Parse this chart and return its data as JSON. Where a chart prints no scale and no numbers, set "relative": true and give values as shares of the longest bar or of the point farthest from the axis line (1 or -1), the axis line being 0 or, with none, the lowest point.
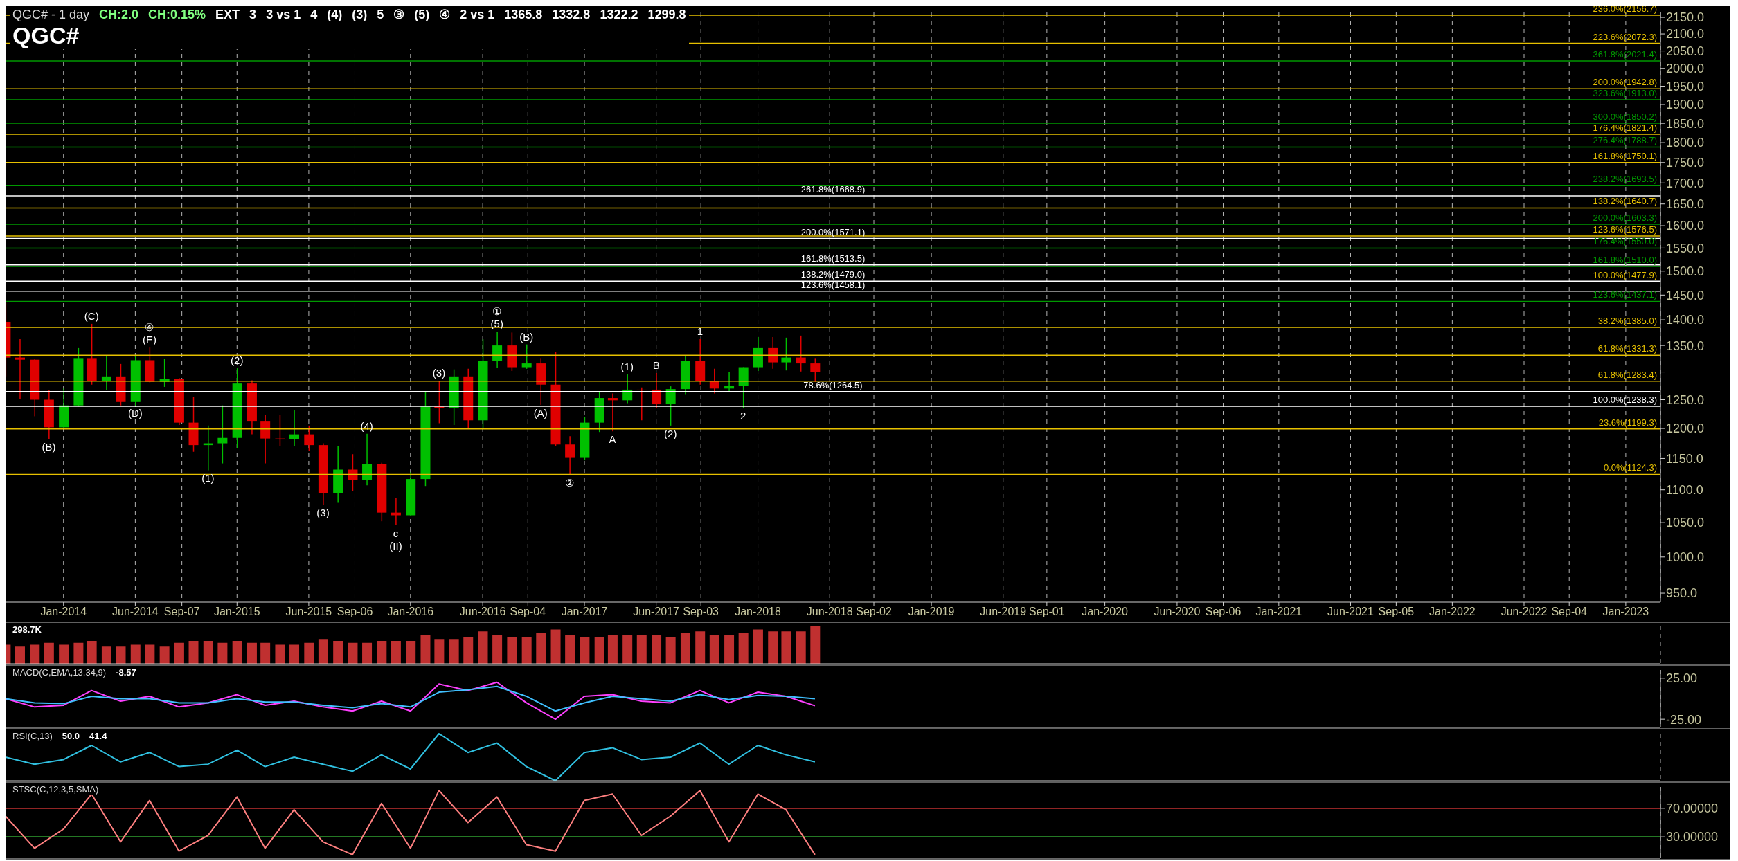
{
  "chart_data": [
    {
      "type": "candlestick",
      "title": "QGC# - 1 day",
      "subtitle": "QGC#",
      "log": "y",
      "grid": "x",
      "x": [
        "2013-09",
        "2013-10",
        "2013-11",
        "2013-12",
        "2014-01",
        "2014-02",
        "2014-03",
        "2014-04",
        "2014-05",
        "2014-06",
        "2014-07",
        "2014-08",
        "2014-09",
        "2014-10",
        "2014-11",
        "2014-12",
        "2015-01",
        "2015-02",
        "2015-03",
        "2015-04",
        "2015-05",
        "2015-06",
        "2015-07",
        "2015-08",
        "2015-09",
        "2015-10",
        "2015-11",
        "2015-12",
        "2016-01",
        "2016-02",
        "2016-03",
        "2016-04",
        "2016-05",
        "2016-06",
        "2016-07",
        "2016-08",
        "2016-09",
        "2016-10",
        "2016-11",
        "2016-12",
        "2017-01",
        "2017-02",
        "2017-03",
        "2017-04",
        "2017-05",
        "2017-06",
        "2017-07",
        "2017-08",
        "2017-09",
        "2017-10",
        "2017-11",
        "2017-12",
        "2018-01",
        "2018-02",
        "2018-03",
        "2018-04",
        "2018-05"
      ],
      "ohlc": [
        [
          1396,
          1434,
          1292,
          1327
        ],
        [
          1327,
          1362,
          1251,
          1323
        ],
        [
          1323,
          1324,
          1221,
          1250
        ],
        [
          1250,
          1267,
          1182,
          1202
        ],
        [
          1202,
          1270,
          1200,
          1240
        ],
        [
          1240,
          1345,
          1238,
          1326
        ],
        [
          1326,
          1392,
          1277,
          1284
        ],
        [
          1284,
          1331,
          1268,
          1292
        ],
        [
          1292,
          1315,
          1240,
          1246
        ],
        [
          1246,
          1332,
          1240,
          1322
        ],
        [
          1322,
          1346,
          1281,
          1282
        ],
        [
          1282,
          1324,
          1273,
          1287
        ],
        [
          1287,
          1289,
          1206,
          1210
        ],
        [
          1210,
          1255,
          1161,
          1172
        ],
        [
          1172,
          1205,
          1131,
          1175
        ],
        [
          1175,
          1240,
          1142,
          1184
        ],
        [
          1184,
          1307,
          1167,
          1279
        ],
        [
          1279,
          1285,
          1190,
          1213
        ],
        [
          1213,
          1224,
          1142,
          1183
        ],
        [
          1183,
          1224,
          1170,
          1182
        ],
        [
          1182,
          1232,
          1170,
          1190
        ],
        [
          1190,
          1205,
          1162,
          1172
        ],
        [
          1172,
          1175,
          1077,
          1095
        ],
        [
          1095,
          1170,
          1080,
          1132
        ],
        [
          1132,
          1157,
          1098,
          1115
        ],
        [
          1115,
          1191,
          1107,
          1141
        ],
        [
          1141,
          1143,
          1052,
          1065
        ],
        [
          1065,
          1088,
          1046,
          1061
        ],
        [
          1061,
          1128,
          1060,
          1117
        ],
        [
          1117,
          1263,
          1106,
          1238
        ],
        [
          1238,
          1284,
          1209,
          1235
        ],
        [
          1235,
          1305,
          1206,
          1292
        ],
        [
          1292,
          1306,
          1199,
          1214
        ],
        [
          1214,
          1362,
          1200,
          1320
        ],
        [
          1320,
          1377,
          1307,
          1350
        ],
        [
          1350,
          1375,
          1302,
          1309
        ],
        [
          1309,
          1352,
          1306,
          1316
        ],
        [
          1316,
          1326,
          1241,
          1277
        ],
        [
          1277,
          1337,
          1171,
          1173
        ],
        [
          1173,
          1187,
          1123,
          1151
        ],
        [
          1151,
          1220,
          1147,
          1210
        ],
        [
          1210,
          1264,
          1194,
          1253
        ],
        [
          1253,
          1261,
          1195,
          1249
        ],
        [
          1249,
          1296,
          1244,
          1268
        ],
        [
          1268,
          1272,
          1214,
          1268
        ],
        [
          1268,
          1298,
          1236,
          1242
        ],
        [
          1242,
          1274,
          1205,
          1269
        ],
        [
          1269,
          1331,
          1260,
          1321
        ],
        [
          1321,
          1362,
          1277,
          1283
        ],
        [
          1283,
          1306,
          1261,
          1270
        ],
        [
          1270,
          1300,
          1264,
          1275
        ],
        [
          1275,
          1309,
          1236,
          1309
        ],
        [
          1309,
          1366,
          1302,
          1345
        ],
        [
          1345,
          1366,
          1306,
          1318
        ],
        [
          1318,
          1365,
          1303,
          1327
        ],
        [
          1327,
          1369,
          1301,
          1316
        ],
        [
          1316,
          1326,
          1282,
          1300
        ]
      ],
      "colors": [
        "#e00000",
        "#e00000",
        "#e00000",
        "#e00000",
        "#00c000",
        "#00c000",
        "#e00000",
        "#00c000",
        "#e00000",
        "#00c000",
        "#e00000",
        "#00c000",
        "#e00000",
        "#e00000",
        "#00c000",
        "#00c000",
        "#00c000",
        "#e00000",
        "#e00000",
        "#e00000",
        "#00c000",
        "#e00000",
        "#e00000",
        "#00c000",
        "#e00000",
        "#00c000",
        "#e00000",
        "#e00000",
        "#00c000",
        "#00c000",
        "#e00000",
        "#00c000",
        "#e00000",
        "#00c000",
        "#00c000",
        "#e00000",
        "#00c000",
        "#e00000",
        "#e00000",
        "#e00000",
        "#00c000",
        "#00c000",
        "#e00000",
        "#00c000",
        "#e00000",
        "#e00000",
        "#00c000",
        "#00c000",
        "#e00000",
        "#e00000",
        "#00c000",
        "#00c000",
        "#00c000",
        "#e00000",
        "#00c000",
        "#e00000",
        "#e00000"
      ],
      "xlim": [
        "2013-09-01",
        "2023-03-15"
      ],
      "xticks": [
        {
          "value": "2014-01-01",
          "label": "Jan-2014"
        },
        {
          "value": "2014-06-01",
          "label": "Jun-2014"
        },
        {
          "value": "2014-09-07",
          "label": "Sep-07"
        },
        {
          "value": "2015-01-01",
          "label": "Jan-2015"
        },
        {
          "value": "2015-06-01",
          "label": "Jun-2015"
        },
        {
          "value": "2015-09-06",
          "label": "Sep-06"
        },
        {
          "value": "2016-01-01",
          "label": "Jan-2016"
        },
        {
          "value": "2016-06-01",
          "label": "Jun-2016"
        },
        {
          "value": "2016-09-04",
          "label": "Sep-04"
        },
        {
          "value": "2017-01-01",
          "label": "Jan-2017"
        },
        {
          "value": "2017-06-01",
          "label": "Jun-2017"
        },
        {
          "value": "2017-09-03",
          "label": "Sep-03"
        },
        {
          "value": "2018-01-01",
          "label": "Jan-2018"
        },
        {
          "value": "2018-06-01",
          "label": "Jun-2018"
        },
        {
          "value": "2018-09-02",
          "label": "Sep-02"
        },
        {
          "value": "2019-01-01",
          "label": "Jan-2019"
        },
        {
          "value": "2019-06-01",
          "label": "Jun-2019"
        },
        {
          "value": "2019-09-01",
          "label": "Sep-01"
        },
        {
          "value": "2020-01-01",
          "label": "Jan-2020"
        },
        {
          "value": "2020-06-01",
          "label": "Jun-2020"
        },
        {
          "value": "2020-09-06",
          "label": "Sep-06"
        },
        {
          "value": "2021-01-01",
          "label": "Jan-2021"
        },
        {
          "value": "2021-06-01",
          "label": "Jun-2021"
        },
        {
          "value": "2021-09-05",
          "label": "Sep-05"
        },
        {
          "value": "2022-01-01",
          "label": "Jan-2022"
        },
        {
          "value": "2022-06-01",
          "label": "Jun-2022"
        },
        {
          "value": "2022-09-04",
          "label": "Sep-04"
        },
        {
          "value": "2023-01-01",
          "label": "Jan-2023"
        }
      ],
      "ylim": [
        938,
        2165
      ],
      "yticks": [
        {
          "value": 950,
          "label": "950.0"
        },
        {
          "value": 1000,
          "label": "1000.0"
        },
        {
          "value": 1050,
          "label": "1050.0"
        },
        {
          "value": 1100,
          "label": "1100.0"
        },
        {
          "value": 1150,
          "label": "1150.0"
        },
        {
          "value": 1200,
          "label": "1200.0"
        },
        {
          "value": 1250,
          "label": "1250.0"
        },
        {
          "value": 1300,
          "label": null
        },
        {
          "value": 1350,
          "label": "1350.0"
        },
        {
          "value": 1400,
          "label": "1400.0"
        },
        {
          "value": 1450,
          "label": "1450.0"
        },
        {
          "value": 1500,
          "label": "1500.0"
        },
        {
          "value": 1550,
          "label": "1550.0"
        },
        {
          "value": 1600,
          "label": "1600.0"
        },
        {
          "value": 1650,
          "label": "1650.0"
        },
        {
          "value": 1700,
          "label": "1700.0"
        },
        {
          "value": 1750,
          "label": "1750.0"
        },
        {
          "value": 1800,
          "label": "1800.0"
        },
        {
          "value": 1850,
          "label": "1850.0"
        },
        {
          "value": 1900,
          "label": "1900.0"
        },
        {
          "value": 1950,
          "label": "1950.0"
        },
        {
          "value": 2000,
          "label": "2000.0"
        },
        {
          "value": 2050,
          "label": "2050.0"
        },
        {
          "value": 2100,
          "label": "2100.0"
        },
        {
          "value": 2150,
          "label": "2150.0"
        }
      ],
      "ref_lines": [
        {
          "axis": "y",
          "value": 2156.7,
          "label": "236.0%(2156.7)",
          "color": "#e6c000"
        },
        {
          "axis": "y",
          "value": 2072.3,
          "label": "223.6%(2072.3)",
          "color": "#e6c000"
        },
        {
          "axis": "y",
          "value": 2021.4,
          "label": "361.8%(2021.4)",
          "color": "#009900"
        },
        {
          "axis": "y",
          "value": 1942.8,
          "label": "200.0%(1942.8)",
          "color": "#e6c000"
        },
        {
          "axis": "y",
          "value": 1913.0,
          "label": "323.6%(1913.0)",
          "color": "#009900"
        },
        {
          "axis": "y",
          "value": 1850.2,
          "label": "300.0%(1850.2)",
          "color": "#009900"
        },
        {
          "axis": "y",
          "value": 1821.4,
          "label": "176.4%(1821.4)",
          "color": "#e6c000"
        },
        {
          "axis": "y",
          "value": 1788.7,
          "label": "276.4%(1788.7)",
          "color": "#009900"
        },
        {
          "axis": "y",
          "value": 1750.1,
          "label": "161.8%(1750.1)",
          "color": "#e6c000"
        },
        {
          "axis": "y",
          "value": 1693.5,
          "label": "238.2%(1693.5)",
          "color": "#009900"
        },
        {
          "axis": "y",
          "value": 1640.7,
          "label": "138.2%(1640.7)",
          "color": "#e6c000"
        },
        {
          "axis": "y",
          "value": 1603.3,
          "label": "200.0%(1603.3)",
          "color": "#009900"
        },
        {
          "axis": "y",
          "value": 1576.5,
          "label": "123.6%(1576.5)",
          "color": "#e6c000"
        },
        {
          "axis": "y",
          "value": 1550.0,
          "label": "176.4%(1550.0)",
          "color": "#009900"
        },
        {
          "axis": "y",
          "value": 1510.0,
          "label": "161.8%(1510.0)",
          "color": "#009900"
        },
        {
          "axis": "y",
          "value": 1477.9,
          "label": "100.0%(1477.9)",
          "color": "#e6c000"
        },
        {
          "axis": "y",
          "value": 1437.1,
          "label": "123.6%(1437.1)",
          "color": "#009900"
        },
        {
          "axis": "y",
          "value": 1385.0,
          "label": "38.2%(1385.0)",
          "color": "#e6c000"
        },
        {
          "axis": "y",
          "value": 1331.3,
          "label": "61.8%(1331.3)",
          "color": "#e6c000"
        },
        {
          "axis": "y",
          "value": 1283.4,
          "label": "61.8%(1283.4)",
          "color": "#e6c000"
        },
        {
          "axis": "y",
          "value": 1264.5,
          "label": "78.6%(1264.5)",
          "color": "#ffffff"
        },
        {
          "axis": "y",
          "value": 1238.3,
          "label": "100.0%(1238.3)",
          "color": "#ffffff"
        },
        {
          "axis": "y",
          "value": 1199.3,
          "label": "23.6%(1199.3)",
          "color": "#e6c000"
        },
        {
          "axis": "y",
          "value": 1124.3,
          "label": "0.0%(1124.3)",
          "color": "#e6c000"
        },
        {
          "axis": "y",
          "value": 1668.9,
          "label": "261.8%(1668.9)",
          "color": "#ffffff"
        },
        {
          "axis": "y",
          "value": 1571.1,
          "label": "200.0%(1571.1)",
          "color": "#ffffff"
        },
        {
          "axis": "y",
          "value": 1513.5,
          "label": "161.8%(1513.5)",
          "color": "#ffffff"
        },
        {
          "axis": "y",
          "value": 1479.0,
          "label": "138.2%(1479.0)",
          "color": "#ffffff"
        },
        {
          "axis": "y",
          "value": 1458.1,
          "label": "123.6%(1458.1)",
          "color": "#ffffff"
        }
      ],
      "annotations": [
        "CH:2.0",
        "CH:0.15%",
        "EXT",
        "3",
        "3 vs 1",
        "4",
        "(4)",
        "(3)",
        "5",
        "③",
        "(5)",
        "④",
        "2 vs 1",
        "1365.8",
        "1332.8",
        "1322.2",
        "1299.8",
        {
          "text": "(B)",
          "x": "2013-12",
          "y": 1182
        },
        {
          "text": "(C)",
          "x": "2014-03",
          "y": 1392
        },
        {
          "text": "(D)",
          "x": "2014-06",
          "y": 1240
        },
        {
          "text": "(E)",
          "x": "2014-07",
          "y": 1346
        },
        {
          "text": "④",
          "x": "2014-07",
          "y": 1346
        },
        {
          "text": "(1)",
          "x": "2014-11",
          "y": 1131
        },
        {
          "text": "(2)",
          "x": "2015-01",
          "y": 1307
        },
        {
          "text": "(3)",
          "x": "2015-07",
          "y": 1077
        },
        {
          "text": "(4)",
          "x": "2015-10",
          "y": 1191
        },
        {
          "text": "c",
          "x": "2015-12",
          "y": 1046
        },
        {
          "text": "(II)",
          "x": "2015-12",
          "y": 1046
        },
        {
          "text": "(3)",
          "x": "2016-03",
          "y": 1284
        },
        {
          "text": "(5)",
          "x": "2016-07",
          "y": 1377
        },
        {
          "text": "①",
          "x": "2016-07",
          "y": 1377
        },
        {
          "text": "(B)",
          "x": "2016-09",
          "y": 1352
        },
        {
          "text": "(A)",
          "x": "2016-10",
          "y": 1241
        },
        {
          "text": "②",
          "x": "2016-12",
          "y": 1123
        },
        {
          "text": "(1)",
          "x": "2017-04",
          "y": 1296
        },
        {
          "text": "B",
          "x": "2017-06",
          "y": 1298
        },
        {
          "text": "A",
          "x": "2017-03",
          "y": 1195
        },
        {
          "text": "(2)",
          "x": "2017-07",
          "y": 1205
        },
        {
          "text": "1",
          "x": "2017-09",
          "y": 1362
        },
        {
          "text": "2",
          "x": "2017-12",
          "y": 1236
        }
      ]
    },
    {
      "type": "bar",
      "relative": true,
      "grid": "x",
      "tick_labels": false,
      "color": "#c03030",
      "x": [
        "2013-09",
        "2013-10",
        "2013-11",
        "2013-12",
        "2014-01",
        "2014-02",
        "2014-03",
        "2014-04",
        "2014-05",
        "2014-06",
        "2014-07",
        "2014-08",
        "2014-09",
        "2014-10",
        "2014-11",
        "2014-12",
        "2015-01",
        "2015-02",
        "2015-03",
        "2015-04",
        "2015-05",
        "2015-06",
        "2015-07",
        "2015-08",
        "2015-09",
        "2015-10",
        "2015-11",
        "2015-12",
        "2016-01",
        "2016-02",
        "2016-03",
        "2016-04",
        "2016-05",
        "2016-06",
        "2016-07",
        "2016-08",
        "2016-09",
        "2016-10",
        "2016-11",
        "2016-12",
        "2017-01",
        "2017-02",
        "2017-03",
        "2017-04",
        "2017-05",
        "2017-06",
        "2017-07",
        "2017-08",
        "2017-09",
        "2017-10",
        "2017-11",
        "2017-12",
        "2018-01",
        "2018-02",
        "2018-03",
        "2018-04",
        "2018-05"
      ],
      "xlim": [
        "2013-09-01",
        "2023-03-15"
      ],
      "xticks": [
        {
          "value": "2014-01-01",
          "label": null
        },
        {
          "value": "2014-06-01",
          "label": null
        },
        {
          "value": "2014-09-07",
          "label": null
        },
        {
          "value": "2015-01-01",
          "label": null
        },
        {
          "value": "2015-06-01",
          "label": null
        },
        {
          "value": "2015-09-06",
          "label": null
        },
        {
          "value": "2016-01-01",
          "label": null
        },
        {
          "value": "2016-06-01",
          "label": null
        },
        {
          "value": "2016-09-04",
          "label": null
        },
        {
          "value": "2017-01-01",
          "label": null
        },
        {
          "value": "2017-06-01",
          "label": null
        },
        {
          "value": "2017-09-03",
          "label": null
        },
        {
          "value": "2018-01-01",
          "label": null
        },
        {
          "value": "2018-06-01",
          "label": null
        },
        {
          "value": "2018-09-02",
          "label": null
        },
        {
          "value": "2019-01-01",
          "label": null
        },
        {
          "value": "2019-06-01",
          "label": null
        },
        {
          "value": "2019-09-01",
          "label": null
        },
        {
          "value": "2020-01-01",
          "label": null
        },
        {
          "value": "2020-06-01",
          "label": null
        },
        {
          "value": "2020-09-06",
          "label": null
        },
        {
          "value": "2021-01-01",
          "label": null
        },
        {
          "value": "2021-06-01",
          "label": null
        },
        {
          "value": "2021-09-05",
          "label": null
        },
        {
          "value": "2022-01-01",
          "label": null
        },
        {
          "value": "2022-06-01",
          "label": null
        },
        {
          "value": "2022-09-04",
          "label": null
        },
        {
          "value": "2023-01-01",
          "label": null
        }
      ],
      "values": [
        0.5,
        0.45,
        0.5,
        0.55,
        0.5,
        0.55,
        0.6,
        0.45,
        0.45,
        0.5,
        0.5,
        0.45,
        0.55,
        0.6,
        0.6,
        0.55,
        0.6,
        0.55,
        0.55,
        0.5,
        0.5,
        0.55,
        0.65,
        0.6,
        0.55,
        0.55,
        0.6,
        0.6,
        0.6,
        0.75,
        0.65,
        0.65,
        0.7,
        0.85,
        0.75,
        0.7,
        0.7,
        0.8,
        0.9,
        0.75,
        0.7,
        0.7,
        0.75,
        0.75,
        0.75,
        0.75,
        0.7,
        0.8,
        0.85,
        0.75,
        0.75,
        0.8,
        0.9,
        0.85,
        0.85,
        0.85,
        1
      ],
      "annotations": [
        "298.7K"
      ]
    },
    {
      "type": "line",
      "grid": "x",
      "tick_labels": "y",
      "title": "MACD(C,EMA,13,34,9)",
      "x": [
        "2013-09",
        "2013-11",
        "2014-01",
        "2014-03",
        "2014-05",
        "2014-07",
        "2014-09",
        "2014-11",
        "2015-01",
        "2015-03",
        "2015-05",
        "2015-07",
        "2015-09",
        "2015-11",
        "2016-01",
        "2016-03",
        "2016-05",
        "2016-07",
        "2016-09",
        "2016-11",
        "2017-01",
        "2017-03",
        "2017-05",
        "2017-07",
        "2017-09",
        "2017-11",
        "2018-01",
        "2018-03",
        "2018-05"
      ],
      "xlim": [
        "2013-09-01",
        "2023-03-15"
      ],
      "xticks": [
        {
          "value": "2014-01-01",
          "label": null
        },
        {
          "value": "2014-06-01",
          "label": null
        },
        {
          "value": "2014-09-07",
          "label": null
        },
        {
          "value": "2015-01-01",
          "label": null
        },
        {
          "value": "2015-06-01",
          "label": null
        },
        {
          "value": "2015-09-06",
          "label": null
        },
        {
          "value": "2016-01-01",
          "label": null
        },
        {
          "value": "2016-06-01",
          "label": null
        },
        {
          "value": "2016-09-04",
          "label": null
        },
        {
          "value": "2017-01-01",
          "label": null
        },
        {
          "value": "2017-06-01",
          "label": null
        },
        {
          "value": "2017-09-03",
          "label": null
        },
        {
          "value": "2018-01-01",
          "label": null
        },
        {
          "value": "2018-06-01",
          "label": null
        },
        {
          "value": "2018-09-02",
          "label": null
        },
        {
          "value": "2019-01-01",
          "label": null
        },
        {
          "value": "2019-06-01",
          "label": null
        },
        {
          "value": "2019-09-01",
          "label": null
        },
        {
          "value": "2020-01-01",
          "label": null
        },
        {
          "value": "2020-06-01",
          "label": null
        },
        {
          "value": "2020-09-06",
          "label": null
        },
        {
          "value": "2021-01-01",
          "label": null
        },
        {
          "value": "2021-06-01",
          "label": null
        },
        {
          "value": "2021-09-05",
          "label": null
        },
        {
          "value": "2022-01-01",
          "label": null
        },
        {
          "value": "2022-06-01",
          "label": null
        },
        {
          "value": "2022-09-04",
          "label": null
        },
        {
          "value": "2023-01-01",
          "label": null
        }
      ],
      "ylim": [
        -35,
        35
      ],
      "yticks": [
        {
          "value": 25,
          "label": "25.00"
        },
        {
          "value": -25,
          "label": "-25.00"
        }
      ],
      "series": [
        {
          "color": "#ff40ff",
          "values": [
            0,
            -10,
            -8,
            10,
            -3,
            3,
            -10,
            -5,
            5,
            -8,
            -3,
            -10,
            -15,
            -3,
            -15,
            18,
            10,
            20,
            -5,
            -25,
            3,
            5,
            -3,
            -5,
            10,
            -5,
            8,
            3,
            -8.57
          ]
        },
        {
          "color": "#40c0ff",
          "values": [
            0,
            -5,
            -6,
            3,
            0,
            0,
            -5,
            -5,
            0,
            -4,
            -4,
            -8,
            -11,
            -6,
            -10,
            8,
            11,
            15,
            3,
            -15,
            -5,
            3,
            0,
            -3,
            5,
            -1,
            4,
            3,
            0
          ]
        }
      ],
      "annotations": [
        "-8.57"
      ]
    },
    {
      "type": "line",
      "grid": "x",
      "tick_labels": false,
      "relative": true,
      "title": "RSI(C,13)",
      "x": [
        "2013-09",
        "2013-11",
        "2014-01",
        "2014-03",
        "2014-05",
        "2014-07",
        "2014-09",
        "2014-11",
        "2015-01",
        "2015-03",
        "2015-05",
        "2015-07",
        "2015-09",
        "2015-11",
        "2016-01",
        "2016-03",
        "2016-05",
        "2016-07",
        "2016-09",
        "2016-11",
        "2017-01",
        "2017-03",
        "2017-05",
        "2017-07",
        "2017-09",
        "2017-11",
        "2018-01",
        "2018-03",
        "2018-05"
      ],
      "xlim": [
        "2013-09-01",
        "2023-03-15"
      ],
      "xticks": [
        {
          "value": "2014-01-01",
          "label": null
        },
        {
          "value": "2014-06-01",
          "label": null
        },
        {
          "value": "2014-09-07",
          "label": null
        },
        {
          "value": "2015-01-01",
          "label": null
        },
        {
          "value": "2015-06-01",
          "label": null
        },
        {
          "value": "2015-09-06",
          "label": null
        },
        {
          "value": "2016-01-01",
          "label": null
        },
        {
          "value": "2016-06-01",
          "label": null
        },
        {
          "value": "2016-09-04",
          "label": null
        },
        {
          "value": "2017-01-01",
          "label": null
        },
        {
          "value": "2017-06-01",
          "label": null
        },
        {
          "value": "2017-09-03",
          "label": null
        },
        {
          "value": "2018-01-01",
          "label": null
        },
        {
          "value": "2018-06-01",
          "label": null
        },
        {
          "value": "2018-09-02",
          "label": null
        },
        {
          "value": "2019-01-01",
          "label": null
        },
        {
          "value": "2019-06-01",
          "label": null
        },
        {
          "value": "2019-09-01",
          "label": null
        },
        {
          "value": "2020-01-01",
          "label": null
        },
        {
          "value": "2020-06-01",
          "label": null
        },
        {
          "value": "2020-09-06",
          "label": null
        },
        {
          "value": "2021-01-01",
          "label": null
        },
        {
          "value": "2021-06-01",
          "label": null
        },
        {
          "value": "2021-09-05",
          "label": null
        },
        {
          "value": "2022-01-01",
          "label": null
        },
        {
          "value": "2022-06-01",
          "label": null
        },
        {
          "value": "2022-09-04",
          "label": null
        },
        {
          "value": "2023-01-01",
          "label": null
        }
      ],
      "series": [
        {
          "color": "#30c0e0",
          "values": [
            0.5,
            0.35,
            0.45,
            0.75,
            0.4,
            0.6,
            0.3,
            0.35,
            0.65,
            0.3,
            0.5,
            0.35,
            0.2,
            0.55,
            0.25,
            1,
            0.6,
            0.8,
            0.3,
            0,
            0.6,
            0.7,
            0.45,
            0.5,
            0.8,
            0.35,
            0.75,
            0.55,
            0.4
          ]
        }
      ],
      "annotations": [
        "50.0",
        "41.4"
      ]
    },
    {
      "type": "line",
      "grid": "x",
      "tick_labels": "y",
      "title": "STSC(C,12,3,5,SMA)",
      "x": [
        "2013-09",
        "2013-11",
        "2014-01",
        "2014-03",
        "2014-05",
        "2014-07",
        "2014-09",
        "2014-11",
        "2015-01",
        "2015-03",
        "2015-05",
        "2015-07",
        "2015-09",
        "2015-11",
        "2016-01",
        "2016-03",
        "2016-05",
        "2016-07",
        "2016-09",
        "2016-11",
        "2017-01",
        "2017-03",
        "2017-05",
        "2017-07",
        "2017-09",
        "2017-11",
        "2018-01",
        "2018-03",
        "2018-05"
      ],
      "xlim": [
        "2013-09-01",
        "2023-03-15"
      ],
      "xticks": [
        {
          "value": "2014-01-01",
          "label": null
        },
        {
          "value": "2014-06-01",
          "label": null
        },
        {
          "value": "2014-09-07",
          "label": null
        },
        {
          "value": "2015-01-01",
          "label": null
        },
        {
          "value": "2015-06-01",
          "label": null
        },
        {
          "value": "2015-09-06",
          "label": null
        },
        {
          "value": "2016-01-01",
          "label": null
        },
        {
          "value": "2016-06-01",
          "label": null
        },
        {
          "value": "2016-09-04",
          "label": null
        },
        {
          "value": "2017-01-01",
          "label": null
        },
        {
          "value": "2017-06-01",
          "label": null
        },
        {
          "value": "2017-09-03",
          "label": null
        },
        {
          "value": "2018-01-01",
          "label": null
        },
        {
          "value": "2018-06-01",
          "label": null
        },
        {
          "value": "2018-09-02",
          "label": null
        },
        {
          "value": "2019-01-01",
          "label": null
        },
        {
          "value": "2019-06-01",
          "label": null
        },
        {
          "value": "2019-09-01",
          "label": null
        },
        {
          "value": "2020-01-01",
          "label": null
        },
        {
          "value": "2020-06-01",
          "label": null
        },
        {
          "value": "2020-09-06",
          "label": null
        },
        {
          "value": "2021-01-01",
          "label": null
        },
        {
          "value": "2021-06-01",
          "label": null
        },
        {
          "value": "2021-09-05",
          "label": null
        },
        {
          "value": "2022-01-01",
          "label": null
        },
        {
          "value": "2022-06-01",
          "label": null
        },
        {
          "value": "2022-09-04",
          "label": null
        },
        {
          "value": "2023-01-01",
          "label": null
        }
      ],
      "ylim": [
        0,
        100
      ],
      "yticks": [
        {
          "value": 70,
          "label": "70.00000"
        },
        {
          "value": 30,
          "label": "30.00000"
        }
      ],
      "ref_lines": [
        {
          "axis": "y",
          "value": 70,
          "color": "#c03030"
        },
        {
          "axis": "y",
          "value": 30,
          "color": "#30a030"
        }
      ],
      "series": [
        {
          "color": "#ff8080",
          "values": [
            59,
            14,
            41,
            90,
            23,
            81,
            10,
            32,
            86,
            14,
            68,
            23,
            5,
            77,
            14,
            95,
            50,
            86,
            19,
            10,
            81,
            90,
            32,
            59,
            95,
            23,
            90,
            68,
            5
          ]
        }
      ]
    }
  ]
}
